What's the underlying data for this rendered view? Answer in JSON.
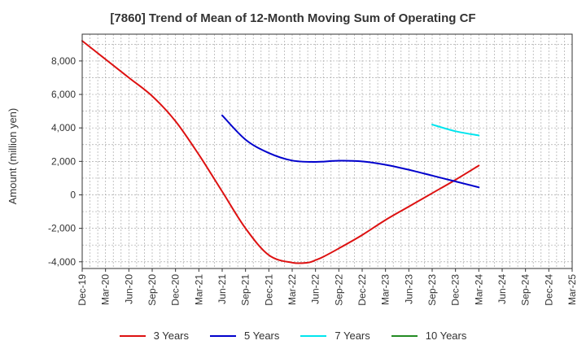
{
  "chart_data": {
    "type": "line",
    "title": "[7860]  Trend of Mean of 12-Month Moving Sum of Operating CF",
    "xlabel": "",
    "ylabel": "Amount (million yen)",
    "ylim": [
      -4400,
      9600
    ],
    "yticks": [
      -4000,
      -2000,
      0,
      2000,
      4000,
      6000,
      8000
    ],
    "ytick_labels": [
      "-4,000",
      "-2,000",
      "0",
      "2,000",
      "4,000",
      "6,000",
      "8,000"
    ],
    "x_range": [
      0,
      63
    ],
    "xticks": [
      0,
      3,
      6,
      9,
      12,
      15,
      18,
      21,
      24,
      27,
      30,
      33,
      36,
      39,
      42,
      45,
      48,
      51,
      54,
      57,
      60,
      63
    ],
    "xtick_labels": [
      "Dec-19",
      "Mar-20",
      "Jun-20",
      "Sep-20",
      "Dec-20",
      "Mar-21",
      "Jun-21",
      "Sep-21",
      "Dec-21",
      "Mar-22",
      "Jun-22",
      "Sep-22",
      "Dec-22",
      "Mar-23",
      "Jun-23",
      "Sep-23",
      "Dec-23",
      "Mar-24",
      "Jun-24",
      "Sep-24",
      "Dec-24",
      "Mar-25"
    ],
    "grid": true,
    "legend_position": "bottom",
    "series": [
      {
        "name": "3 Years",
        "color": "#dd1111",
        "x": [
          0,
          3,
          6,
          9,
          12,
          15,
          18,
          21,
          24,
          27,
          29,
          30,
          31,
          33,
          36,
          39,
          42,
          45,
          48,
          51
        ],
        "values": [
          9200,
          8100,
          7000,
          5900,
          4400,
          2400,
          200,
          -2000,
          -3600,
          -4050,
          -4050,
          -3900,
          -3700,
          -3200,
          -2400,
          -1500,
          -700,
          100,
          900,
          1750
        ]
      },
      {
        "name": "5 Years",
        "color": "#0000cc",
        "x": [
          18,
          21,
          24,
          27,
          30,
          33,
          36,
          39,
          42,
          45,
          48,
          51
        ],
        "values": [
          4750,
          3300,
          2500,
          2050,
          1970,
          2040,
          2000,
          1800,
          1500,
          1150,
          800,
          450
        ]
      },
      {
        "name": "7 Years",
        "color": "#00e5ee",
        "x": [
          45,
          48,
          51
        ],
        "values": [
          4200,
          3800,
          3550
        ]
      },
      {
        "name": "10 Years",
        "color": "#228b22",
        "x": [],
        "values": []
      }
    ]
  }
}
